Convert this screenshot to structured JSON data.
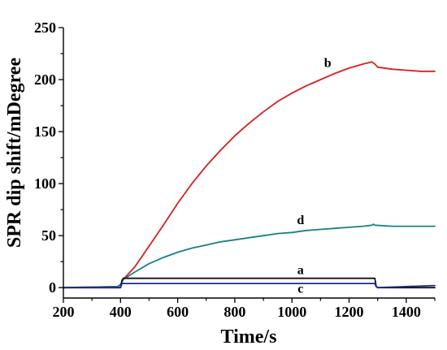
{
  "chart_data": {
    "type": "line",
    "xlabel": "Time/s",
    "ylabel": "SPR dip shift/mDegree",
    "xlim": [
      200,
      1500
    ],
    "ylim": [
      -10,
      250
    ],
    "xticks": [
      200,
      400,
      600,
      800,
      1000,
      1200,
      1400
    ],
    "yticks": [
      0,
      50,
      100,
      150,
      200,
      250
    ],
    "grid": false,
    "legend": "none",
    "series": [
      {
        "name": "b",
        "color": "#d42020",
        "x": [
          200,
          390,
          400,
          410,
          450,
          500,
          550,
          600,
          650,
          700,
          750,
          800,
          850,
          900,
          950,
          1000,
          1050,
          1100,
          1150,
          1200,
          1250,
          1280,
          1285,
          1290,
          1300,
          1350,
          1400,
          1450,
          1500
        ],
        "y": [
          0,
          1,
          3,
          8,
          20,
          40,
          60,
          81,
          100,
          117,
          132,
          146,
          158,
          169,
          179,
          187,
          194,
          200,
          206,
          211,
          215,
          217,
          216,
          215,
          212,
          210,
          209,
          208,
          208
        ]
      },
      {
        "name": "d",
        "color": "#1a8080",
        "x": [
          200,
          390,
          400,
          410,
          450,
          500,
          550,
          600,
          650,
          700,
          750,
          800,
          850,
          900,
          950,
          1000,
          1050,
          1100,
          1150,
          1200,
          1250,
          1280,
          1285,
          1290,
          1350,
          1400,
          1450,
          1500
        ],
        "y": [
          0,
          1,
          3,
          8,
          15,
          23,
          29,
          34,
          38,
          41,
          44,
          46,
          48,
          50,
          52,
          53,
          55,
          56,
          57,
          58,
          59,
          60,
          61,
          60,
          59,
          59,
          59,
          59
        ]
      },
      {
        "name": "a",
        "color": "#111111",
        "x": [
          200,
          400,
          405,
          410,
          600,
          800,
          1000,
          1200,
          1290,
          1295,
          1300,
          1400,
          1500
        ],
        "y": [
          0,
          0,
          7,
          9,
          9,
          9,
          9,
          9,
          9,
          1,
          0,
          0,
          0
        ]
      },
      {
        "name": "c",
        "color": "#1a2b8c",
        "x": [
          200,
          400,
          405,
          410,
          600,
          800,
          1000,
          1200,
          1290,
          1295,
          1300,
          1400,
          1500
        ],
        "y": [
          0,
          0,
          4,
          4,
          4,
          4,
          4,
          4,
          4,
          1,
          0,
          1,
          2
        ]
      }
    ],
    "curve_labels": [
      {
        "text": "b",
        "x": 1125,
        "y": 212
      },
      {
        "text": "d",
        "x": 1030,
        "y": 61
      },
      {
        "text": "a",
        "x": 1030,
        "y": 13
      },
      {
        "text": "c",
        "x": 1030,
        "y": -5
      }
    ]
  }
}
